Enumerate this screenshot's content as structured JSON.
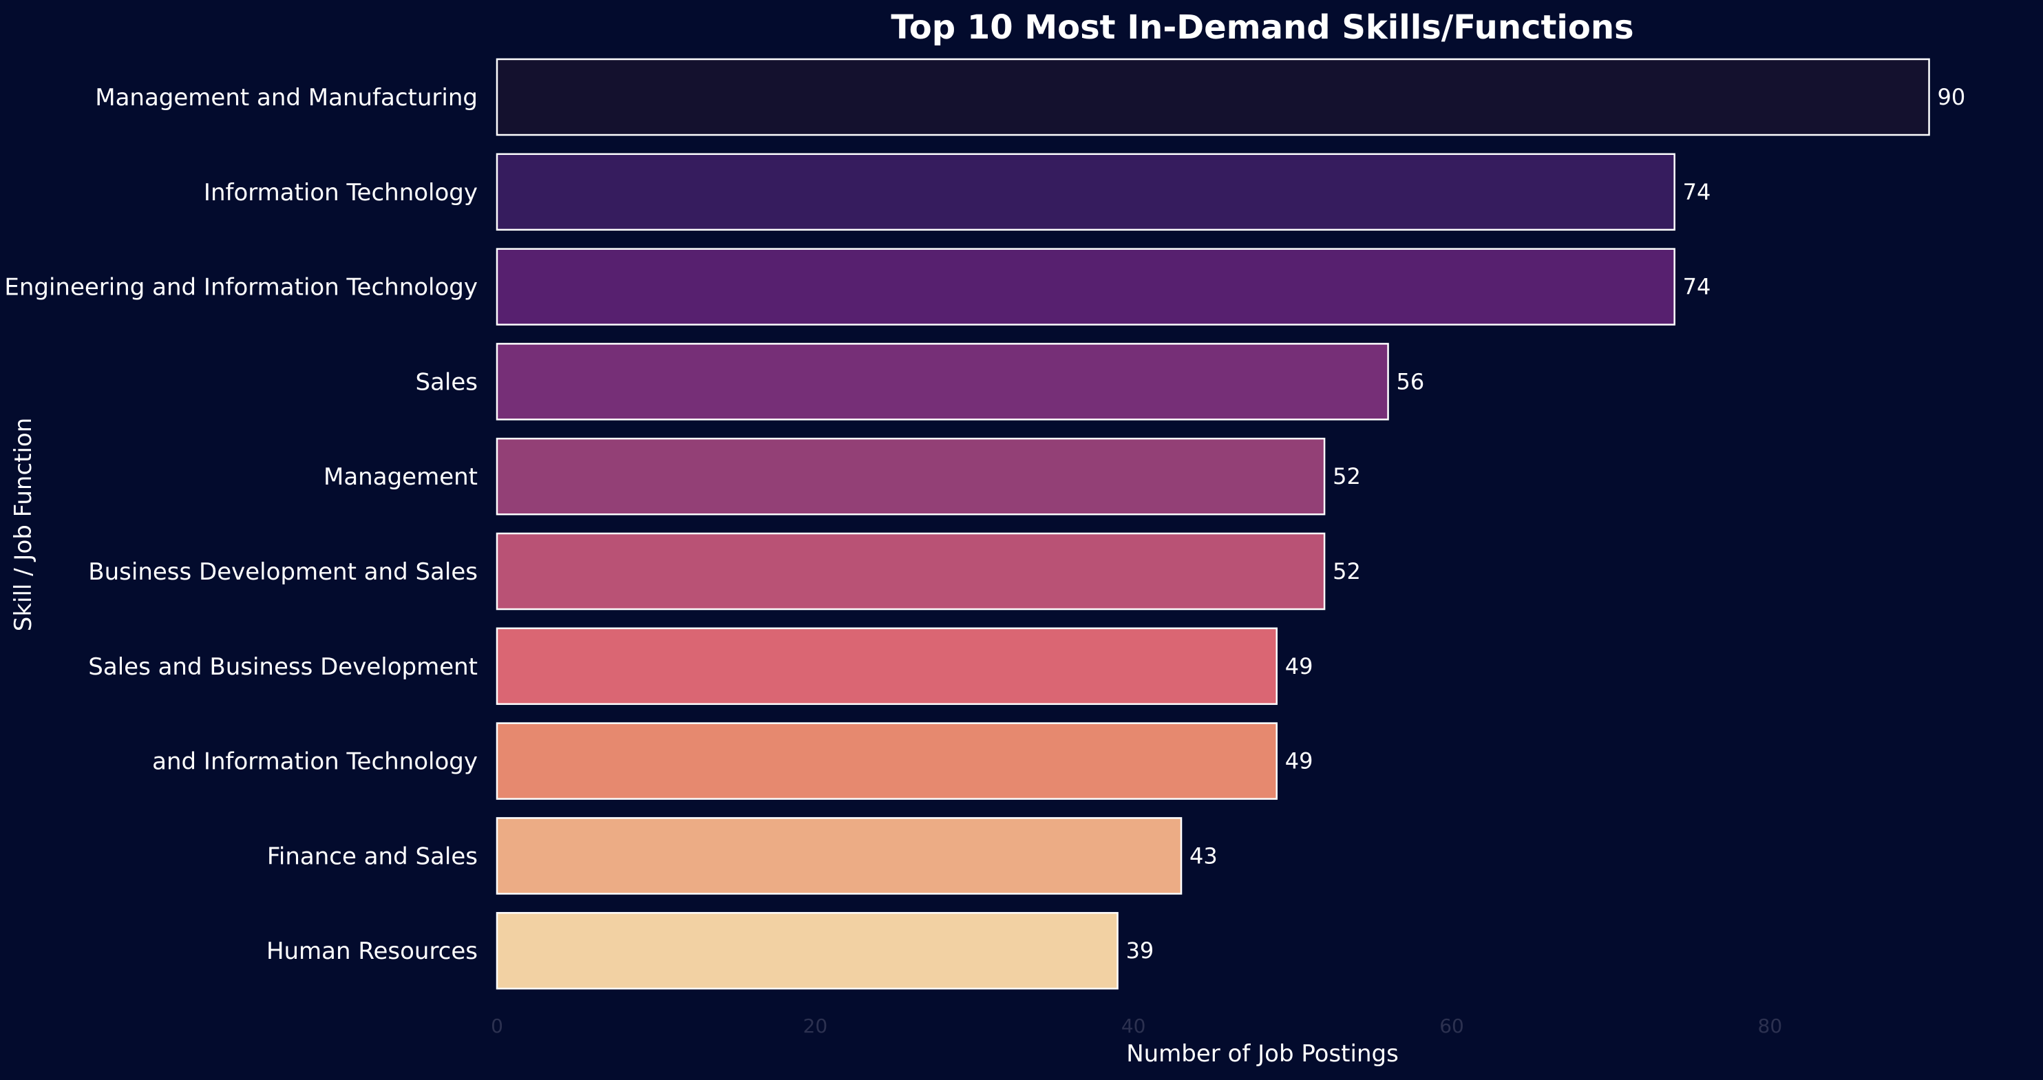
{
  "chart_data": {
    "type": "bar",
    "orientation": "horizontal",
    "title": "Top 10 Most In-Demand Skills/Functions",
    "xlabel": "Number of Job Postings",
    "ylabel": "Skill / Job Function",
    "xlim": [
      0,
      94
    ],
    "xticks": [
      "0",
      "20",
      "40",
      "60",
      "80"
    ],
    "grid": false,
    "categories": [
      "Management and Manufacturing",
      "Information Technology",
      "Engineering and Information Technology",
      "Sales",
      "Management",
      "Business Development and Sales",
      "Sales and Business Development",
      "and Information Technology",
      "Finance and Sales",
      "Human Resources"
    ],
    "values": [
      90,
      74,
      74,
      56,
      52,
      52,
      49,
      49,
      43,
      39
    ],
    "value_labels": [
      "90",
      "74",
      "74",
      "56",
      "52",
      "52",
      "49",
      "49",
      "43",
      "39"
    ],
    "colors": [
      "#14112e",
      "#361c5e",
      "#57206f",
      "#762f77",
      "#934076",
      "#b95275",
      "#da6673",
      "#e6896f",
      "#ecac85",
      "#f2d1a3"
    ],
    "bar_edge_color": "#ffffff",
    "background": "#030b2d"
  }
}
